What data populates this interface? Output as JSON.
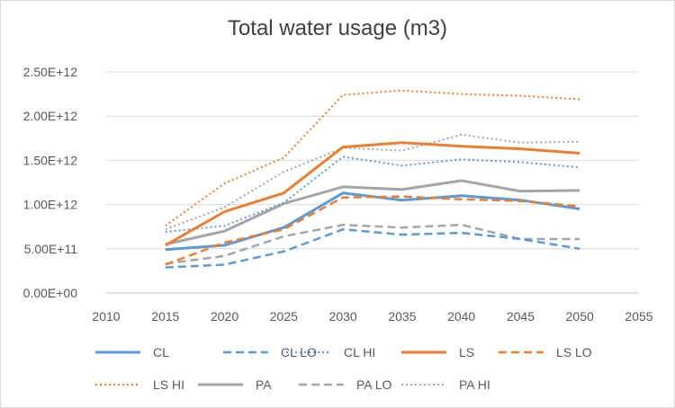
{
  "chart_data": {
    "type": "line",
    "title": "Total water usage (m3)",
    "xlabel": "",
    "ylabel": "",
    "xlim": [
      2010,
      2055
    ],
    "ylim": [
      0,
      2500000000000
    ],
    "x_ticks": [
      "2010",
      "2015",
      "2020",
      "2025",
      "2030",
      "2035",
      "2040",
      "2045",
      "2050",
      "2055"
    ],
    "y_ticks": [
      "0.00E+00",
      "5.00E+11",
      "1.00E+12",
      "1.50E+12",
      "2.00E+12",
      "2.50E+12"
    ],
    "grid": "horizontal",
    "legend_position": "bottom",
    "x": [
      2015,
      2020,
      2025,
      2030,
      2035,
      2040,
      2045,
      2050
    ],
    "series": [
      {
        "name": "CL",
        "color": "#5b9bd5",
        "style": "solid",
        "values": [
          490000000000,
          540000000000,
          740000000000,
          1130000000000,
          1050000000000,
          1100000000000,
          1050000000000,
          950000000000
        ]
      },
      {
        "name": "CL LO",
        "color": "#5b9bd5",
        "style": "dashed",
        "values": [
          290000000000,
          320000000000,
          470000000000,
          720000000000,
          660000000000,
          680000000000,
          610000000000,
          500000000000
        ]
      },
      {
        "name": "CL HI",
        "color": "#5b9bd5",
        "style": "dotted",
        "values": [
          690000000000,
          760000000000,
          1020000000000,
          1540000000000,
          1440000000000,
          1510000000000,
          1480000000000,
          1420000000000
        ]
      },
      {
        "name": "LS",
        "color": "#ed7d31",
        "style": "solid",
        "values": [
          540000000000,
          920000000000,
          1130000000000,
          1650000000000,
          1700000000000,
          1660000000000,
          1630000000000,
          1580000000000
        ]
      },
      {
        "name": "LS LO",
        "color": "#ed7d31",
        "style": "dashed",
        "values": [
          320000000000,
          570000000000,
          720000000000,
          1080000000000,
          1090000000000,
          1060000000000,
          1040000000000,
          980000000000
        ]
      },
      {
        "name": "LS HI",
        "color": "#ed7d31",
        "style": "dotted",
        "values": [
          760000000000,
          1240000000000,
          1530000000000,
          2240000000000,
          2290000000000,
          2250000000000,
          2230000000000,
          2190000000000
        ]
      },
      {
        "name": "PA",
        "color": "#a5a5a5",
        "style": "solid",
        "values": [
          550000000000,
          700000000000,
          1010000000000,
          1200000000000,
          1170000000000,
          1270000000000,
          1150000000000,
          1160000000000
        ]
      },
      {
        "name": "PA LO",
        "color": "#a5a5a5",
        "style": "dashed",
        "values": [
          330000000000,
          420000000000,
          640000000000,
          770000000000,
          740000000000,
          770000000000,
          610000000000,
          610000000000
        ]
      },
      {
        "name": "PA HI",
        "color": "#a5a5a5",
        "style": "dotted",
        "values": [
          720000000000,
          970000000000,
          1370000000000,
          1640000000000,
          1610000000000,
          1790000000000,
          1700000000000,
          1710000000000
        ]
      }
    ]
  }
}
